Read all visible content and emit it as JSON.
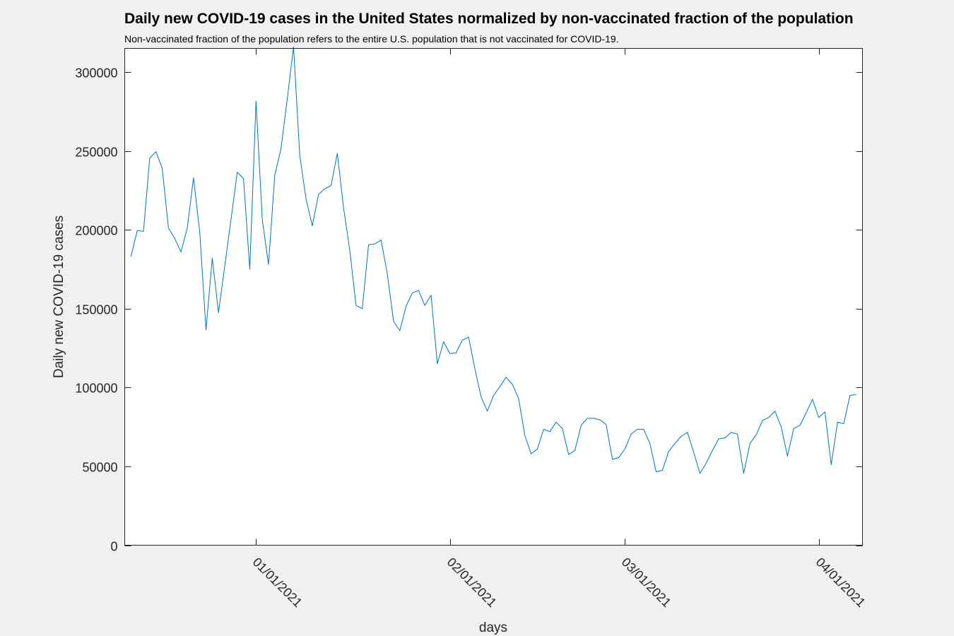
{
  "chart_data": {
    "type": "line",
    "title": "Daily new COVID-19 cases in the United States normalized by non-vaccinated fraction of the population",
    "subtitle": "Non-vaccinated fraction of the population refers to the entire U.S. population that is not vaccinated for COVID-19.",
    "xlabel": "days",
    "ylabel": "Daily new COVID-19 cases",
    "x_start": "2020-12-12",
    "x_end": "2021-04-08",
    "xlim": [
      "2020-12-11",
      "2021-04-08"
    ],
    "ylim": [
      0,
      315000
    ],
    "xticks": [
      {
        "date": "2021-01-01",
        "label": "01/01/2021"
      },
      {
        "date": "2021-02-01",
        "label": "02/01/2021"
      },
      {
        "date": "2021-03-01",
        "label": "03/01/2021"
      },
      {
        "date": "2021-04-01",
        "label": "04/01/2021"
      }
    ],
    "yticks": [
      0,
      50000,
      100000,
      150000,
      200000,
      250000,
      300000
    ],
    "ytick_labels": [
      "0",
      "50000",
      "100000",
      "150000",
      "200000",
      "250000",
      "300000"
    ],
    "grid": false,
    "series": [
      {
        "color": "#0072bd",
        "values": [
          183000,
          199500,
          199000,
          245500,
          249500,
          239000,
          201000,
          194500,
          186000,
          201000,
          233000,
          198500,
          136500,
          182000,
          147500,
          177000,
          206500,
          236500,
          232500,
          175000,
          281500,
          206500,
          178000,
          234500,
          251500,
          283000,
          316000,
          247000,
          219500,
          202500,
          222500,
          226000,
          228000,
          248500,
          214000,
          187000,
          152000,
          150000,
          190500,
          191000,
          193500,
          172000,
          142000,
          136000,
          151500,
          160000,
          161500,
          152000,
          158500,
          115000,
          129000,
          121500,
          122000,
          130000,
          132000,
          112000,
          94000,
          85000,
          95000,
          100500,
          106500,
          102000,
          93000,
          69500,
          58000,
          61000,
          73500,
          72000,
          78000,
          74000,
          57500,
          60000,
          76000,
          80500,
          80500,
          79500,
          76500,
          54500,
          55500,
          61000,
          70500,
          73500,
          73500,
          64500,
          46500,
          47500,
          59500,
          64500,
          69000,
          71500,
          59000,
          45500,
          52000,
          60000,
          67500,
          68000,
          71500,
          70500,
          45500,
          64500,
          70000,
          79000,
          81000,
          85000,
          75000,
          56500,
          74000,
          76000,
          84000,
          92500,
          81000,
          84500,
          51000,
          78000,
          77000,
          95000,
          95500
        ]
      }
    ]
  }
}
